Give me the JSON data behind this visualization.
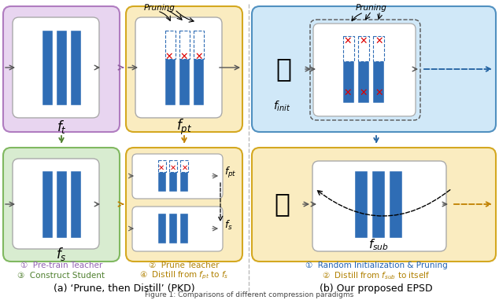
{
  "fig_width": 6.34,
  "fig_height": 3.82,
  "dpi": 100,
  "colors": {
    "blue_bar": "#2f6db5",
    "purple_bg": "#e8d5f0",
    "purple_border": "#b07cc0",
    "green_bg": "#d8ecd0",
    "green_border": "#80b860",
    "yellow_bg": "#faecc0",
    "yellow_border": "#d4a820",
    "lightblue_bg": "#d0e8f8",
    "lightblue_border": "#5090c0",
    "red_x": "#dd0000",
    "arrow_purple": "#9060a0",
    "arrow_blue": "#2060a0",
    "arrow_yellow": "#c08000",
    "arrow_green": "#508030",
    "text_purple": "#9060b0",
    "text_blue": "#2060b0",
    "text_yellow": "#b08000",
    "text_green": "#508030"
  },
  "caption_a": "(a) ‘Prune, then Distill’ (PKD)",
  "caption_b": "(b) Our proposed EPSD",
  "label_ft": "$f_t$",
  "label_fpt_top": "$f_{pt}$",
  "label_fpt_inner": "$f_{pt}$",
  "label_fs_bot": "$f_s$",
  "label_fs_inner": "$f_s$",
  "label_finit": "$f_{init}$",
  "label_fsub": "$f_{sub}$",
  "step1a": "①  Pre-train Teacher",
  "step2a": "②  Prune Teacher",
  "step3a": "③  Construct Student",
  "step4a": "④  Distill from $f_{pt}$ to $f_s$",
  "step1b": "①  Random Initialization & Pruning",
  "step2b": "②  Distill from $f_{sub}$ to itself",
  "pruning_text": "Pruning"
}
